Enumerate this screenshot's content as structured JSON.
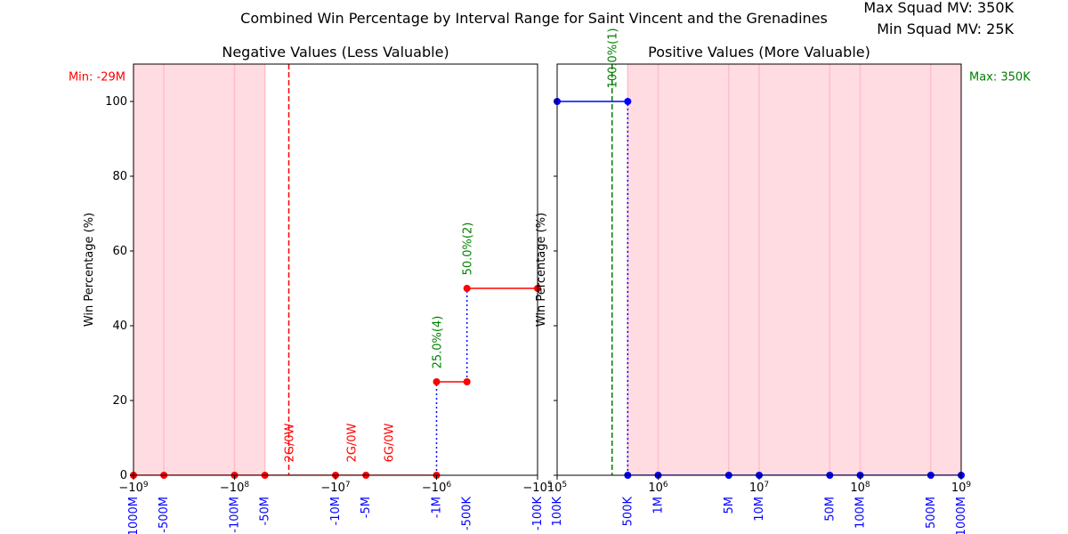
{
  "title": "Combined Win Percentage by Interval Range for Saint Vincent and the Grenadines",
  "max_squad_mv": "Max Squad MV: 350K",
  "min_squad_mv": "Min Squad MV: 25K",
  "colors": {
    "negative_line": "#ff0000",
    "positive_line": "#0000ff",
    "connector": "#0000ff",
    "annotation_green": "#008000",
    "annotation_red": "#ff0000",
    "tick_label_blue": "#0000ff",
    "shade": "#ffc0cb"
  },
  "chart_data": [
    {
      "type": "line",
      "title": "Negative Values (Less Valuable)",
      "xscale": "symlog-negative",
      "ylabel": "Win Percentage (%)",
      "ylim": [
        0,
        100
      ],
      "yticks": [
        0,
        20,
        40,
        60,
        80,
        100
      ],
      "xtick_labels_math": [
        "−10^9",
        "−10^8",
        "−10^7",
        "−10^6",
        "−10^5"
      ],
      "xtick_values": [
        -1000000000,
        -100000000,
        -10000000,
        -1000000,
        -100000
      ],
      "interval_labels": [
        {
          "value": -1000000000,
          "label": "-1000M"
        },
        {
          "value": -500000000,
          "label": "-500M"
        },
        {
          "value": -100000000,
          "label": "-100M"
        },
        {
          "value": -50000000,
          "label": "-50M"
        },
        {
          "value": -10000000,
          "label": "-10M"
        },
        {
          "value": -5000000,
          "label": "-5M"
        },
        {
          "value": -1000000,
          "label": "-1M"
        },
        {
          "value": -500000,
          "label": "-500K"
        },
        {
          "value": -100000,
          "label": "-100K"
        }
      ],
      "series": [
        {
          "color": "red",
          "points": [
            {
              "x": -1000000000,
              "y": 0
            },
            {
              "x": -500000000,
              "y": 0
            },
            {
              "x": -100000000,
              "y": 0
            },
            {
              "x": -50000000,
              "y": 0
            },
            {
              "x": -10000000,
              "y": 0
            },
            {
              "x": -5000000,
              "y": 0
            },
            {
              "x": -1000000,
              "y": 0
            },
            {
              "x": -1000000,
              "y": 25
            },
            {
              "x": -500000,
              "y": 25
            },
            {
              "x": -500000,
              "y": 50
            },
            {
              "x": -100000,
              "y": 50
            }
          ]
        }
      ],
      "connectors": [
        {
          "x": -1000000,
          "y_from": 0,
          "y_to": 25
        },
        {
          "x": -500000,
          "y_from": 25,
          "y_to": 50
        }
      ],
      "min_marker": {
        "x": -29000000,
        "label": "Min: -29M"
      },
      "shaded_range": [
        -1000000000,
        -50000000
      ],
      "annotations": [
        {
          "x": -29000000,
          "y": 3,
          "text": "2G/0W",
          "color": "red"
        },
        {
          "x": -7000000,
          "y": 3,
          "text": "2G/0W",
          "color": "red"
        },
        {
          "x": -3000000,
          "y": 3,
          "text": "6G/0W",
          "color": "red"
        },
        {
          "x": -1000000,
          "y": 28,
          "text": "25.0%(4)",
          "color": "green"
        },
        {
          "x": -500000,
          "y": 53,
          "text": "50.0%(2)",
          "color": "green"
        }
      ]
    },
    {
      "type": "line",
      "title": "Positive Values (More Valuable)",
      "xscale": "log",
      "ylabel": "Win Percentage (%)",
      "ylim": [
        0,
        100
      ],
      "xtick_labels_math": [
        "10^5",
        "10^6",
        "10^7",
        "10^8",
        "10^9"
      ],
      "xtick_values": [
        100000,
        1000000,
        10000000,
        100000000,
        1000000000
      ],
      "interval_labels": [
        {
          "value": 100000,
          "label": "100K"
        },
        {
          "value": 500000,
          "label": "500K"
        },
        {
          "value": 1000000,
          "label": "1M"
        },
        {
          "value": 5000000,
          "label": "5M"
        },
        {
          "value": 10000000,
          "label": "10M"
        },
        {
          "value": 50000000,
          "label": "50M"
        },
        {
          "value": 100000000,
          "label": "100M"
        },
        {
          "value": 500000000,
          "label": "500M"
        },
        {
          "value": 1000000000,
          "label": "1000M"
        }
      ],
      "series": [
        {
          "color": "blue",
          "points": [
            {
              "x": 100000,
              "y": 100
            },
            {
              "x": 500000,
              "y": 100
            },
            {
              "x": 500000,
              "y": 0
            },
            {
              "x": 1000000,
              "y": 0
            },
            {
              "x": 5000000,
              "y": 0
            },
            {
              "x": 10000000,
              "y": 0
            },
            {
              "x": 50000000,
              "y": 0
            },
            {
              "x": 100000000,
              "y": 0
            },
            {
              "x": 500000000,
              "y": 0
            },
            {
              "x": 1000000000,
              "y": 0
            }
          ]
        }
      ],
      "connectors": [
        {
          "x": 500000,
          "y_from": 0,
          "y_to": 100
        }
      ],
      "max_marker": {
        "x": 350000,
        "label": "Max: 350K"
      },
      "shaded_range": [
        500000,
        1000000000
      ],
      "annotations": [
        {
          "x": 350000,
          "y": 103,
          "text": "100.0%(1)",
          "color": "green"
        }
      ]
    }
  ]
}
